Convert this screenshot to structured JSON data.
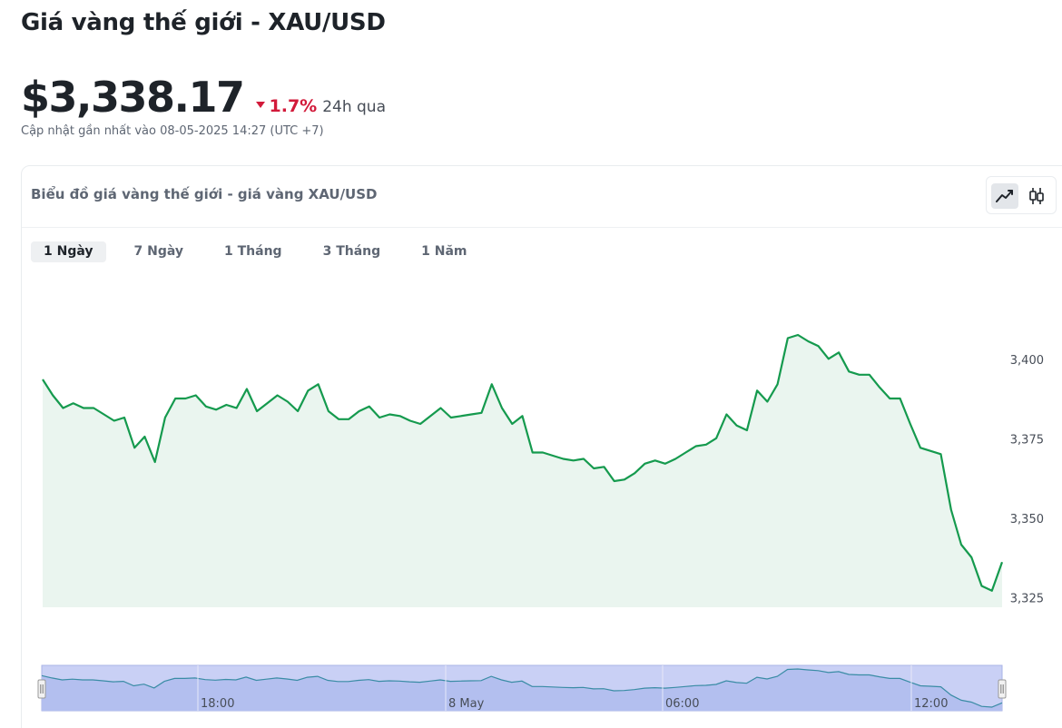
{
  "page": {
    "title": "Giá vàng thế giới - XAU/USD",
    "price": "$3,338.17",
    "change_pct": "1.7%",
    "change_direction": "down",
    "change_period": "24h qua",
    "updated": "Cập nhật gần nhất vào 08-05-2025 14:27 (UTC +7)"
  },
  "chart_card": {
    "title": "Biểu đồ giá vàng thế giới - giá vàng XAU/USD",
    "chart_types": [
      {
        "name": "line",
        "icon": "line-chart-icon",
        "active": true
      },
      {
        "name": "candlestick",
        "icon": "candlestick-icon",
        "active": false
      }
    ],
    "tabs": [
      {
        "label": "1 Ngày",
        "active": true
      },
      {
        "label": "7 Ngày",
        "active": false
      },
      {
        "label": "1 Tháng",
        "active": false
      },
      {
        "label": "3 Tháng",
        "active": false
      },
      {
        "label": "1 Năm",
        "active": false
      }
    ]
  },
  "colors": {
    "line": "#159a4e",
    "area": "#eaf5ef",
    "down": "#d21a3a",
    "navigator_fill": "#c9d0f5"
  },
  "chart_data": {
    "type": "area",
    "title": "",
    "xlabel": "",
    "ylabel": "",
    "y_ticks": [
      "3,325",
      "3,350",
      "3,375",
      "3,400"
    ],
    "ylim": [
      3322,
      3412
    ],
    "x_ticks": [
      "18:00",
      "8 May",
      "06:00",
      "12:00"
    ],
    "grid": false,
    "series": [
      {
        "values": [
          3394,
          3389,
          3385,
          3386.5,
          3385,
          3385,
          3383,
          3381,
          3382,
          3372.5,
          3376,
          3368,
          3382,
          3388,
          3388,
          3389,
          3385.5,
          3384.5,
          3386,
          3385,
          3391,
          3384,
          3386.5,
          3389,
          3387,
          3384,
          3390.5,
          3392.5,
          3384,
          3381.5,
          3381.5,
          3384,
          3385.5,
          3382,
          3383,
          3382.5,
          3381,
          3380,
          3382.5,
          3385,
          3382,
          3382.5,
          3383,
          3383.5,
          3392.5,
          3385,
          3380,
          3382.5,
          3371,
          3371,
          3370,
          3369,
          3368.5,
          3369,
          3366,
          3366.5,
          3362,
          3362.5,
          3364.5,
          3367.5,
          3368.5,
          3367.5,
          3369,
          3371,
          3373,
          3373.5,
          3375.5,
          3383,
          3379.5,
          3378,
          3390.5,
          3387,
          3392.5,
          3407,
          3408,
          3406,
          3404.5,
          3400.5,
          3402.5,
          3396.5,
          3395.5,
          3395.5,
          3391.5,
          3388,
          3388,
          3380,
          3372.5,
          3371.5,
          3370.5,
          3353,
          3342,
          3338,
          3329,
          3327.5,
          3336.5
        ]
      }
    ]
  }
}
